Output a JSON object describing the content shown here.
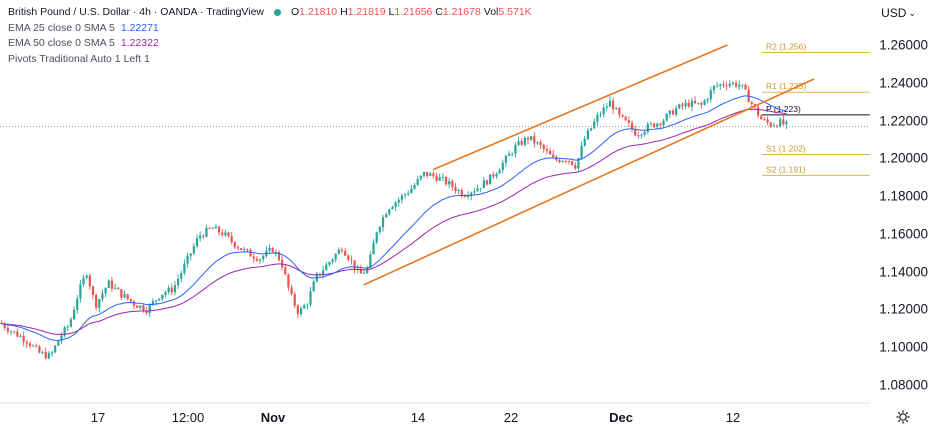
{
  "header": {
    "title": "British Pound / U.S. Dollar · 4h · OANDA · TradingView",
    "ohlc": [
      {
        "label": "O",
        "value": "1.21810"
      },
      {
        "label": "H",
        "value": "1.21819"
      },
      {
        "label": "L",
        "value": "1.21656"
      },
      {
        "label": "C",
        "value": "1.21678"
      },
      {
        "label": "Vol",
        "value": "5.571K"
      }
    ],
    "indicators": [
      {
        "name": "EMA 25 close 0 SMA 5",
        "value": "1.22271",
        "color": "#2962ff"
      },
      {
        "name": "EMA 50 close 0 SMA 5",
        "value": "1.22322",
        "color": "#9c27b0"
      },
      {
        "name": "Pivots Traditional Auto 1 Left 1",
        "value": ""
      }
    ],
    "currency": "USD"
  },
  "chart_data": {
    "type": "candlestick",
    "y_range": [
      1.07,
      1.265
    ],
    "y_ticks": [
      "1.26000",
      "1.24000",
      "1.22000",
      "1.20000",
      "1.18000",
      "1.16000",
      "1.14000",
      "1.12000",
      "1.10000",
      "1.08000"
    ],
    "x_ticks": [
      "17",
      "12:00",
      "Nov",
      "14",
      "22",
      "Dec",
      "12"
    ],
    "last_price": 1.21678,
    "colors": {
      "up": "#26a69a",
      "down": "#ef5350",
      "ema25": "#2962ff",
      "ema50": "#9c27b0",
      "channel": "#e8771e",
      "pivot": "#e5b24a"
    },
    "pivots": [
      {
        "label": "R2 (1.256)",
        "value": 1.256
      },
      {
        "label": "R1 (1.235)",
        "value": 1.235
      },
      {
        "label": "P (1.223)",
        "value": 1.223
      },
      {
        "label": "S1 (1.202)",
        "value": 1.202
      },
      {
        "label": "S2 (1.191)",
        "value": 1.191
      }
    ],
    "channel_upper": [
      {
        "t": 0.5,
        "v": 1.194
      },
      {
        "t": 0.84,
        "v": 1.26
      }
    ],
    "channel_lower": [
      {
        "t": 0.42,
        "v": 1.133
      },
      {
        "t": 0.94,
        "v": 1.242
      }
    ],
    "price_path": [
      [
        0.0,
        1.113
      ],
      [
        0.015,
        1.108
      ],
      [
        0.03,
        1.104
      ],
      [
        0.045,
        1.097
      ],
      [
        0.058,
        1.095
      ],
      [
        0.07,
        1.106
      ],
      [
        0.08,
        1.112
      ],
      [
        0.09,
        1.128
      ],
      [
        0.1,
        1.14
      ],
      [
        0.11,
        1.122
      ],
      [
        0.125,
        1.134
      ],
      [
        0.14,
        1.128
      ],
      [
        0.155,
        1.123
      ],
      [
        0.17,
        1.12
      ],
      [
        0.185,
        1.128
      ],
      [
        0.2,
        1.131
      ],
      [
        0.215,
        1.145
      ],
      [
        0.23,
        1.159
      ],
      [
        0.245,
        1.163
      ],
      [
        0.258,
        1.16
      ],
      [
        0.27,
        1.155
      ],
      [
        0.285,
        1.15
      ],
      [
        0.3,
        1.147
      ],
      [
        0.315,
        1.152
      ],
      [
        0.325,
        1.145
      ],
      [
        0.335,
        1.128
      ],
      [
        0.345,
        1.118
      ],
      [
        0.355,
        1.124
      ],
      [
        0.365,
        1.137
      ],
      [
        0.38,
        1.145
      ],
      [
        0.395,
        1.153
      ],
      [
        0.405,
        1.146
      ],
      [
        0.415,
        1.138
      ],
      [
        0.425,
        1.142
      ],
      [
        0.435,
        1.162
      ],
      [
        0.448,
        1.174
      ],
      [
        0.46,
        1.178
      ],
      [
        0.475,
        1.184
      ],
      [
        0.49,
        1.192
      ],
      [
        0.505,
        1.19
      ],
      [
        0.52,
        1.186
      ],
      [
        0.535,
        1.181
      ],
      [
        0.55,
        1.184
      ],
      [
        0.565,
        1.189
      ],
      [
        0.58,
        1.197
      ],
      [
        0.595,
        1.206
      ],
      [
        0.61,
        1.211
      ],
      [
        0.625,
        1.206
      ],
      [
        0.64,
        1.199
      ],
      [
        0.655,
        1.2
      ],
      [
        0.665,
        1.196
      ],
      [
        0.675,
        1.21
      ],
      [
        0.69,
        1.222
      ],
      [
        0.705,
        1.23
      ],
      [
        0.715,
        1.222
      ],
      [
        0.725,
        1.218
      ],
      [
        0.735,
        1.213
      ],
      [
        0.75,
        1.217
      ],
      [
        0.765,
        1.22
      ],
      [
        0.78,
        1.226
      ],
      [
        0.795,
        1.229
      ],
      [
        0.81,
        1.228
      ],
      [
        0.825,
        1.238
      ],
      [
        0.84,
        1.24
      ],
      [
        0.855,
        1.239
      ],
      [
        0.868,
        1.229
      ],
      [
        0.88,
        1.22
      ],
      [
        0.89,
        1.218
      ],
      [
        0.9,
        1.219
      ],
      [
        0.91,
        1.217
      ]
    ]
  }
}
